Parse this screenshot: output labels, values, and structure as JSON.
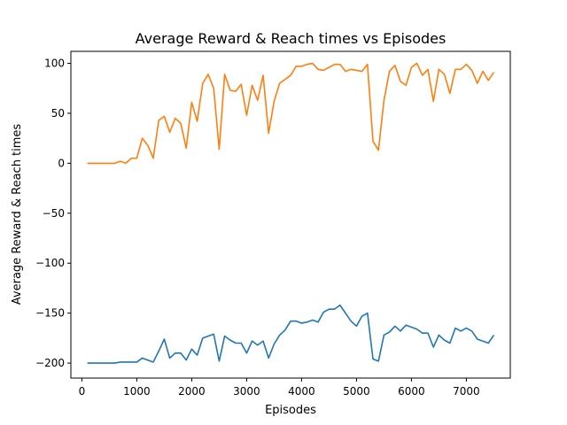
{
  "chart_data": {
    "type": "line",
    "title": "Average Reward & Reach times vs Episodes",
    "xlabel": "Episodes",
    "ylabel": "Average Reward & Reach times",
    "xlim": [
      -200,
      7800
    ],
    "ylim": [
      -215,
      112
    ],
    "xticks": [
      0,
      1000,
      2000,
      3000,
      4000,
      5000,
      6000,
      7000
    ],
    "yticks": [
      -200,
      -150,
      -100,
      -50,
      0,
      50,
      100
    ],
    "ytick_labels": [
      "−200",
      "−150",
      "−100",
      "−50",
      "0",
      "50",
      "100"
    ],
    "grid": false,
    "series": [
      {
        "color": "#1f77b4",
        "x": [
          100,
          200,
          300,
          400,
          500,
          600,
          700,
          800,
          900,
          1000,
          1100,
          1200,
          1300,
          1400,
          1500,
          1600,
          1700,
          1800,
          1900,
          2000,
          2100,
          2200,
          2300,
          2400,
          2500,
          2600,
          2700,
          2800,
          2900,
          3000,
          3100,
          3200,
          3300,
          3400,
          3500,
          3600,
          3700,
          3800,
          3900,
          4000,
          4100,
          4200,
          4300,
          4400,
          4500,
          4600,
          4700,
          4800,
          4900,
          5000,
          5100,
          5200,
          5300,
          5400,
          5500,
          5600,
          5700,
          5800,
          5900,
          6000,
          6100,
          6200,
          6300,
          6400,
          6500,
          6600,
          6700,
          6800,
          6900,
          7000,
          7100,
          7200,
          7300,
          7400,
          7500
        ],
        "y": [
          -200,
          -200,
          -200,
          -200,
          -200,
          -200,
          -199,
          -199,
          -199,
          -199,
          -195,
          -197,
          -199,
          -188,
          -176,
          -195,
          -190,
          -190,
          -197,
          -186,
          -192,
          -175,
          -173,
          -171,
          -198,
          -173,
          -177,
          -180,
          -180,
          -190,
          -178,
          -182,
          -178,
          -195,
          -181,
          -172,
          -167,
          -158,
          -158,
          -160,
          -159,
          -157,
          -159,
          -149,
          -146,
          -146,
          -142,
          -150,
          -158,
          -163,
          -153,
          -150,
          -196,
          -198,
          -172,
          -169,
          -163,
          -168,
          -162,
          -164,
          -166,
          -170,
          -170,
          -184,
          -172,
          -177,
          -180,
          -165,
          -168,
          -165,
          -168,
          -176,
          -178,
          -180,
          -172
        ]
      },
      {
        "color": "#ff7f0e",
        "x": [
          100,
          200,
          300,
          400,
          500,
          600,
          700,
          800,
          900,
          1000,
          1100,
          1200,
          1300,
          1400,
          1500,
          1600,
          1700,
          1800,
          1900,
          2000,
          2100,
          2200,
          2300,
          2400,
          2500,
          2600,
          2700,
          2800,
          2900,
          3000,
          3100,
          3200,
          3300,
          3400,
          3500,
          3600,
          3700,
          3800,
          3900,
          4000,
          4100,
          4200,
          4300,
          4400,
          4500,
          4600,
          4700,
          4800,
          4900,
          5000,
          5100,
          5200,
          5300,
          5400,
          5500,
          5600,
          5700,
          5800,
          5900,
          6000,
          6100,
          6200,
          6300,
          6400,
          6500,
          6600,
          6700,
          6800,
          6900,
          7000,
          7100,
          7200,
          7300,
          7400,
          7500
        ],
        "y": [
          0,
          0,
          0,
          0,
          0,
          0,
          2,
          0,
          5,
          5,
          25,
          18,
          5,
          43,
          47,
          31,
          45,
          40,
          15,
          61,
          42,
          80,
          89,
          75,
          14,
          89,
          73,
          72,
          79,
          48,
          78,
          63,
          88,
          30,
          62,
          80,
          84,
          88,
          97,
          97,
          99,
          100,
          94,
          93,
          96,
          99,
          99,
          92,
          94,
          93,
          92,
          99,
          22,
          13,
          63,
          92,
          98,
          82,
          78,
          96,
          100,
          88,
          94,
          62,
          94,
          89,
          70,
          94,
          94,
          99,
          93,
          80,
          92,
          83,
          91
        ]
      }
    ]
  }
}
